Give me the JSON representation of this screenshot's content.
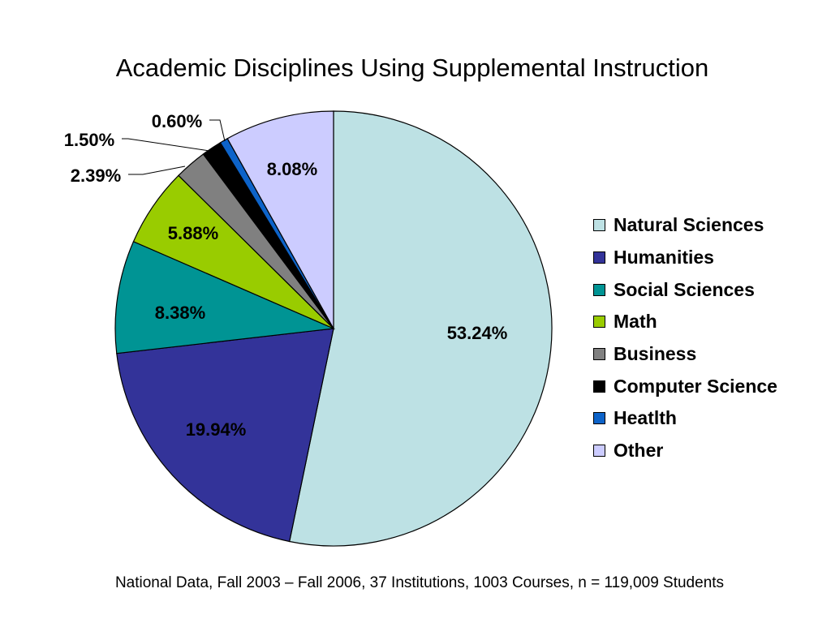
{
  "chart_data": {
    "type": "pie",
    "title": "Academic Disciplines Using Supplemental Instruction",
    "caption": "National Data, Fall 2003 – Fall 2006, 37 Institutions, 1003 Courses, n = 119,009 Students",
    "slices": [
      {
        "label": "Natural Sciences",
        "value": 53.24,
        "display": "53.24%",
        "color": "#bde1e4"
      },
      {
        "label": "Humanities",
        "value": 19.94,
        "display": "19.94%",
        "color": "#333399"
      },
      {
        "label": "Social Sciences",
        "value": 8.38,
        "display": "8.38%",
        "color": "#009494"
      },
      {
        "label": "Math",
        "value": 5.88,
        "display": "5.88%",
        "color": "#99cc00"
      },
      {
        "label": "Business",
        "value": 2.39,
        "display": "2.39%",
        "color": "#808080"
      },
      {
        "label": "Computer Science",
        "value": 1.5,
        "display": "1.50%",
        "color": "#000000"
      },
      {
        "label": "Heatlth",
        "value": 0.6,
        "display": "0.60%",
        "color": "#0d63c9"
      },
      {
        "label": "Other",
        "value": 8.08,
        "display": "8.08%",
        "color": "#ccccff"
      }
    ],
    "legend_position": "right"
  }
}
